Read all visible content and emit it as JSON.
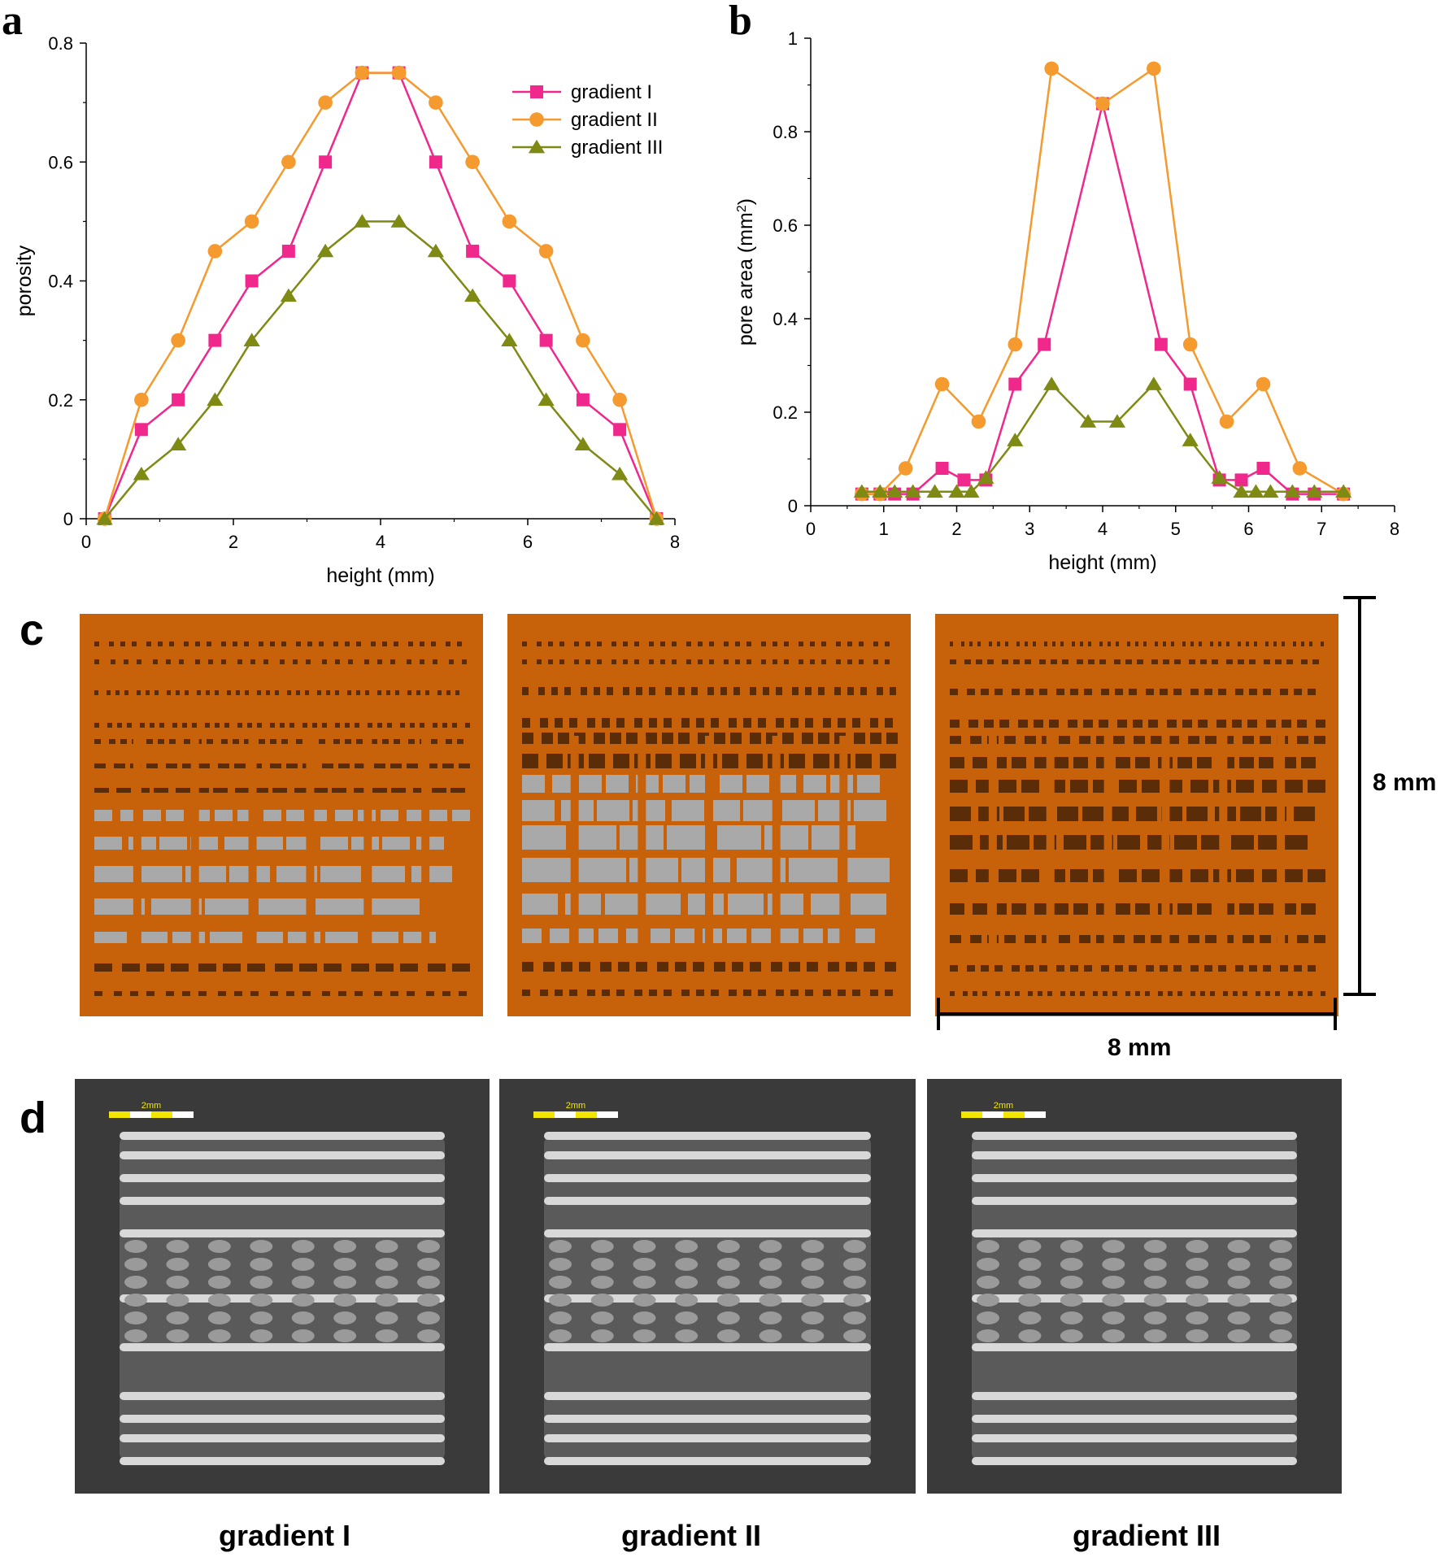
{
  "panels": {
    "a": "a",
    "b": "b",
    "c": "c",
    "d": "d"
  },
  "dimensions": {
    "width_label": "8 mm",
    "height_label": "8 mm"
  },
  "scale_bar_label": "2mm",
  "captions": [
    "gradient I",
    "gradient II",
    "gradient III"
  ],
  "colors": {
    "gradient_I": "#f0288c",
    "gradient_II": "#f59a2e",
    "gradient_III": "#7f8a14",
    "model_orange": "#c8620a",
    "model_pore": "#5a2c08",
    "model_through": "#a9a9a9"
  },
  "chart_data": [
    {
      "type": "line",
      "xlabel": "height (mm)",
      "ylabel": "porosity",
      "xlim": [
        0,
        8
      ],
      "ylim": [
        0,
        0.8
      ],
      "xticks": [
        "0",
        "2",
        "4",
        "6",
        "8"
      ],
      "yticks": [
        "0",
        "0.2",
        "0.4",
        "0.6",
        "0.8"
      ],
      "legend_position": "top-right",
      "x": [
        0.25,
        0.75,
        1.25,
        1.75,
        2.25,
        2.75,
        3.25,
        3.75,
        4.25,
        4.75,
        5.25,
        5.75,
        6.25,
        6.75,
        7.25,
        7.75
      ],
      "series": [
        {
          "name": "gradient I",
          "marker": "square",
          "color": "#f0288c",
          "values": [
            0,
            0.15,
            0.2,
            0.3,
            0.4,
            0.45,
            0.6,
            0.75,
            0.75,
            0.6,
            0.45,
            0.4,
            0.3,
            0.2,
            0.15,
            0
          ]
        },
        {
          "name": "gradient II",
          "marker": "circle",
          "color": "#f59a2e",
          "values": [
            0,
            0.2,
            0.3,
            0.45,
            0.5,
            0.6,
            0.7,
            0.75,
            0.75,
            0.7,
            0.6,
            0.5,
            0.45,
            0.3,
            0.2,
            0
          ]
        },
        {
          "name": "gradient III",
          "marker": "triangle",
          "color": "#7f8a14",
          "values": [
            0,
            0.075,
            0.125,
            0.2,
            0.3,
            0.375,
            0.45,
            0.5,
            0.5,
            0.45,
            0.375,
            0.3,
            0.2,
            0.125,
            0.075,
            0
          ]
        }
      ]
    },
    {
      "type": "line",
      "xlabel": "height (mm)",
      "ylabel": "pore area (mm",
      "ylabel_sup": "2",
      "ylabel_end": ")",
      "xlim": [
        0,
        8
      ],
      "ylim": [
        0,
        1
      ],
      "xticks": [
        "0",
        "1",
        "2",
        "3",
        "4",
        "5",
        "6",
        "7",
        "8"
      ],
      "yticks": [
        "0",
        "0.2",
        "0.4",
        "0.6",
        "0.8",
        "1"
      ],
      "series": [
        {
          "name": "gradient I",
          "marker": "square",
          "color": "#f0288c",
          "x": [
            0.7,
            0.95,
            1.15,
            1.4,
            1.8,
            2.1,
            2.4,
            2.8,
            3.2,
            4.0,
            4.8,
            5.2,
            5.6,
            5.9,
            6.2,
            6.6,
            6.9,
            7.3
          ],
          "values": [
            0.025,
            0.025,
            0.025,
            0.025,
            0.08,
            0.055,
            0.055,
            0.26,
            0.345,
            0.86,
            0.345,
            0.26,
            0.055,
            0.055,
            0.08,
            0.025,
            0.025,
            0.025
          ]
        },
        {
          "name": "gradient II",
          "marker": "circle",
          "color": "#f59a2e",
          "x": [
            0.7,
            0.95,
            1.3,
            1.8,
            2.3,
            2.8,
            3.3,
            4.0,
            4.7,
            5.2,
            5.7,
            6.2,
            6.7,
            7.3
          ],
          "values": [
            0.025,
            0.025,
            0.08,
            0.26,
            0.18,
            0.345,
            0.935,
            0.86,
            0.935,
            0.345,
            0.18,
            0.26,
            0.08,
            0.025
          ]
        },
        {
          "name": "gradient III",
          "marker": "triangle",
          "color": "#7f8a14",
          "x": [
            0.7,
            0.95,
            1.15,
            1.4,
            1.7,
            2.0,
            2.2,
            2.4,
            2.8,
            3.3,
            3.8,
            4.2,
            4.7,
            5.2,
            5.6,
            5.9,
            6.1,
            6.3,
            6.6,
            6.9,
            7.3
          ],
          "values": [
            0.03,
            0.03,
            0.03,
            0.03,
            0.03,
            0.03,
            0.03,
            0.06,
            0.14,
            0.26,
            0.18,
            0.18,
            0.26,
            0.14,
            0.06,
            0.03,
            0.03,
            0.03,
            0.03,
            0.03,
            0.03
          ]
        }
      ]
    }
  ]
}
